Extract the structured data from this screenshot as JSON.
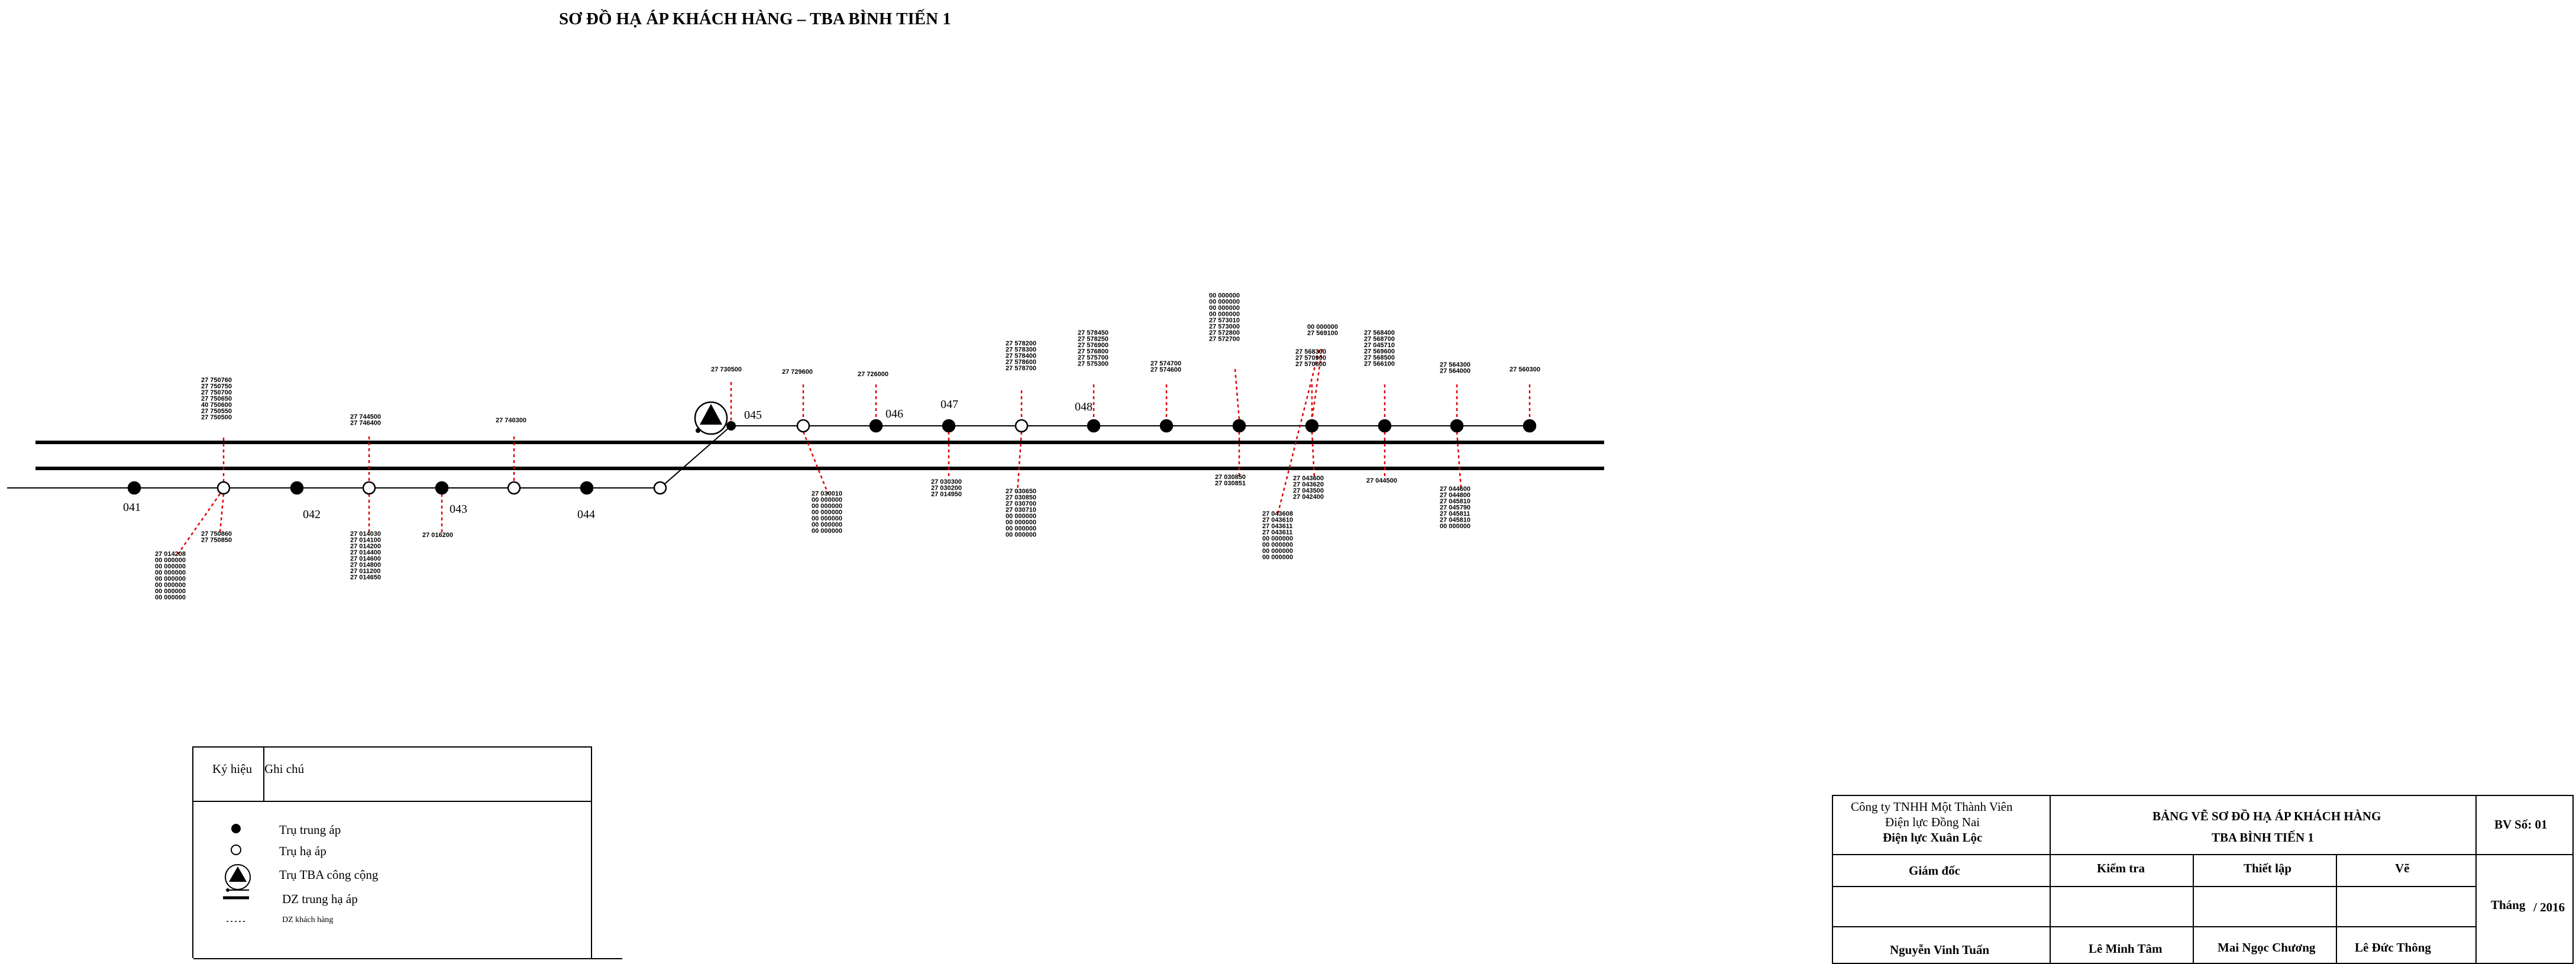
{
  "title": "SƠ ĐỒ HẠ ÁP KHÁCH HÀNG – TBA BÌNH TIẾN 1",
  "poles": [
    {
      "label": "041"
    },
    {
      "label": "042"
    },
    {
      "label": "043"
    },
    {
      "label": "044"
    },
    {
      "label": "045"
    },
    {
      "label": "046"
    },
    {
      "label": "047"
    },
    {
      "label": "048"
    }
  ],
  "customer_groups": [
    {
      "lines": [
        "27  750760",
        "27  750750",
        "27  750700",
        "27  750650",
        "40  750600",
        "27  750550",
        "27  750500"
      ]
    },
    {
      "lines": [
        "27  744500",
        "27  746400"
      ]
    },
    {
      "lines": [
        "27  740300"
      ]
    },
    {
      "lines": [
        "27  730500"
      ]
    },
    {
      "lines": [
        "27  729600"
      ]
    },
    {
      "lines": [
        "27  726000"
      ]
    },
    {
      "lines": [
        "27  578200",
        "27  578300",
        "27  578400",
        "27  578600",
        "27  578700"
      ]
    },
    {
      "lines": [
        "27  578450",
        "27  578250",
        "27  576900",
        "27  576800",
        "27  575700",
        "27  575300"
      ]
    },
    {
      "lines": [
        "27  574700",
        "27  574600"
      ]
    },
    {
      "lines": [
        "00  000000",
        "00  000000",
        "00  000000",
        "00  000000",
        "27  573010",
        "27  573000",
        "27  572800",
        "27  572700"
      ]
    },
    {
      "lines": [
        "00  000000",
        "27  569100"
      ]
    },
    {
      "lines": [
        "27  568300",
        "27  570900",
        "27  570800"
      ]
    },
    {
      "lines": [
        "27  568400",
        "27  568700",
        "27  045710",
        "27  569600",
        "27  568500",
        "27  566100"
      ]
    },
    {
      "lines": [
        "27  564300",
        "27  564000"
      ]
    },
    {
      "lines": [
        "27  560300"
      ]
    },
    {
      "lines": [
        "27  750860",
        "27  750850"
      ]
    },
    {
      "lines": [
        "27  014208",
        "00  000000",
        "00  000000",
        "00  000000",
        "00  000000",
        "00  000000",
        "00  000000",
        "00  000000"
      ]
    },
    {
      "lines": [
        "27  014030",
        "27  014100",
        "27  014200",
        "27  014400",
        "27  014600",
        "27  014800",
        "27  011200",
        "27  014650"
      ]
    },
    {
      "lines": [
        "27  016200"
      ]
    },
    {
      "lines": [
        "27  030010",
        "00  000000",
        "00  000000",
        "00  000000",
        "00  000000",
        "00  000000",
        "00  000000"
      ]
    },
    {
      "lines": [
        "27  030300",
        "27  030200",
        "27  014950"
      ]
    },
    {
      "lines": [
        "27  030650",
        "27  030850",
        "27  030700",
        "27  030710",
        "00  000000",
        "00  000000",
        "00  000000",
        "00  000000"
      ]
    },
    {
      "lines": [
        "27  030850",
        "27  030851"
      ]
    },
    {
      "lines": [
        "27  043600",
        "27  043620",
        "27  043500",
        "27  042400"
      ]
    },
    {
      "lines": [
        "27  043608",
        "27  043610",
        "27  043611",
        "27  043611",
        "00  000000",
        "00  000000",
        "00  000000",
        "00  000000"
      ]
    },
    {
      "lines": [
        "27  044500"
      ]
    },
    {
      "lines": [
        "27  044600",
        "27  044800",
        "27  045810",
        "27  045790",
        "27  045811",
        "27  045810",
        "00  000000"
      ]
    }
  ],
  "legend": {
    "header_symbol": "Ký hiệu",
    "header_note": "Ghi chú",
    "items": [
      {
        "label": "Trụ trung áp"
      },
      {
        "label": "Trụ hạ áp"
      },
      {
        "label": "Trụ TBA công cộng"
      },
      {
        "label": "DZ trung hạ áp"
      },
      {
        "label": "DZ khách hàng"
      }
    ]
  },
  "title_block": {
    "company_line1": "Công ty TNHH Một Thành Viên",
    "company_line2": "Điện lực Đồng Nai",
    "company_line3": "Điện lực Xuân Lộc",
    "drawing_title1": "BẢNG VẼ SƠ ĐỒ HẠ ÁP KHÁCH HÀNG",
    "drawing_title2": "TBA BÌNH TIẾN 1",
    "drawing_no": "BV Số: 01",
    "role_director": "Giám đốc",
    "role_check": "Kiểm tra",
    "role_setup": "Thiết lập",
    "role_draw": "Vẽ",
    "date_month": "Tháng",
    "date_year": "/ 2016",
    "name_director": "Nguyễn Vinh Tuấn",
    "name_check": "Lê Minh Tâm",
    "name_setup": "Mai Ngọc Chương",
    "name_draw": "Lê Đức Thông"
  }
}
